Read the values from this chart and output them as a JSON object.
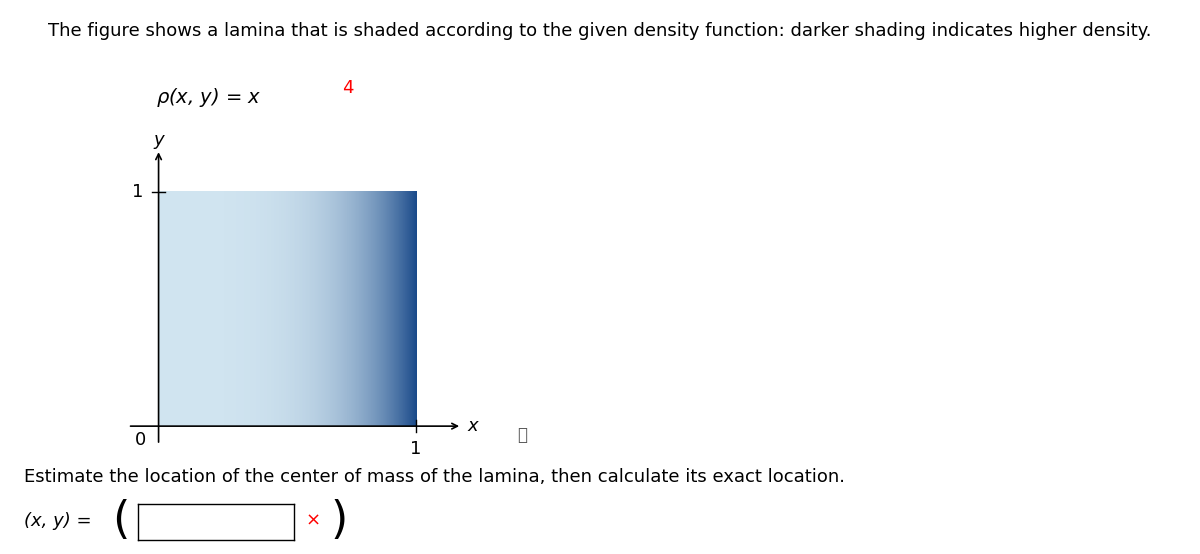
{
  "title_text": "The figure shows a lamina that is shaded according to the given density function: darker shading indicates higher density.",
  "formula_text": "ρ(x, y) = x",
  "formula_superscript": "4",
  "estimate_text": "Estimate the location of the center of mass of the lamina, then calculate its exact location.",
  "answer_label": "(x, y) =",
  "xlabel": "x",
  "ylabel": "y",
  "x_tick_label": "1",
  "y_tick_label": "1",
  "origin_label": "0",
  "background_color": "#ffffff",
  "color_light": "#d0e4f0",
  "color_dark": "#1a4a8a",
  "title_fontsize": 13,
  "formula_fontsize": 14,
  "axis_label_fontsize": 13,
  "tick_fontsize": 13,
  "estimate_fontsize": 13,
  "answer_fontsize": 13
}
